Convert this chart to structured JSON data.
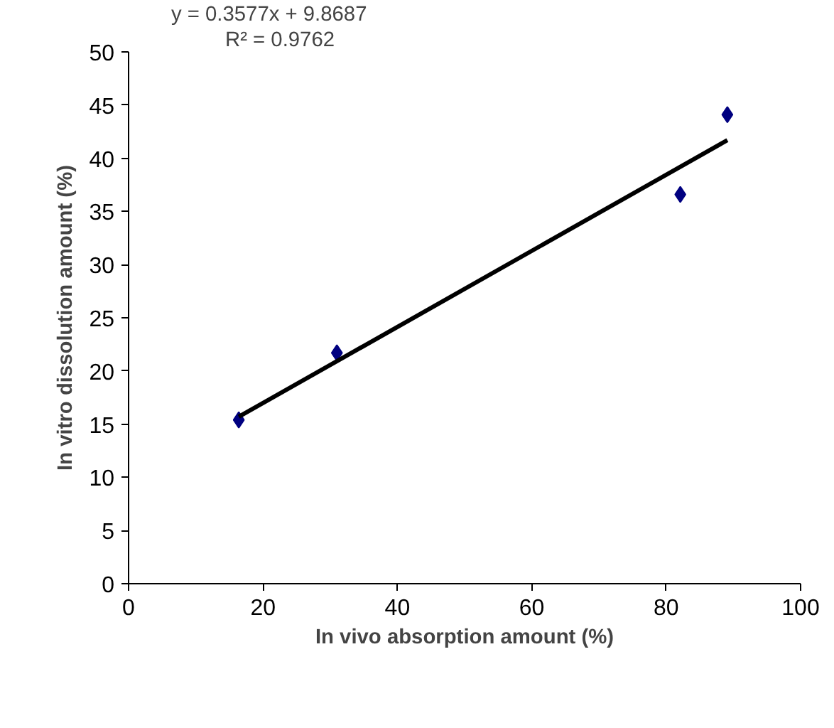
{
  "chart_data": {
    "type": "scatter",
    "xlabel": "In vivo absorption amount (%)",
    "ylabel": "In vitro dissolution amount (%)",
    "annotations": [
      "y = 0.3577x + 9.8687",
      "R² = 0.9762"
    ],
    "xlim": [
      0,
      100
    ],
    "xticks": [
      0,
      20,
      40,
      60,
      80,
      100
    ],
    "ylim": [
      0,
      50
    ],
    "yticks": [
      0,
      5,
      10,
      15,
      20,
      25,
      30,
      35,
      40,
      45,
      50
    ],
    "grid": false,
    "series": [
      {
        "color": "#000080",
        "x": [
          16.4,
          31.0,
          82.1,
          89.1
        ],
        "values": [
          15.4,
          21.7,
          36.6,
          44.1
        ],
        "marker": "diamond"
      },
      {
        "type": "line",
        "color": "#000000",
        "x": [
          16.4,
          89.1
        ],
        "values": [
          15.7,
          41.7
        ],
        "line_style": "solid"
      }
    ]
  }
}
